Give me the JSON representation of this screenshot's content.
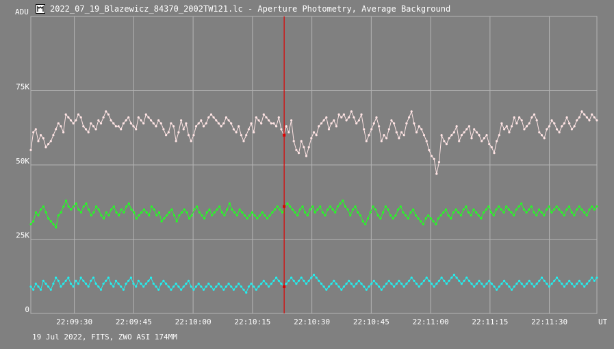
{
  "window": {
    "title": "2022_07_19_Blazewicz_84370_2002TW121.lc - Aperture Photometry, Average Background",
    "icon": "app-window-icon"
  },
  "footer": {
    "info": "19 Jul 2022, FITS, ZWO ASI 174MM"
  },
  "colors": {
    "background": "#808080",
    "grid": "#b4b4b4",
    "text": "#ffffff",
    "cursor": "#dd0000",
    "series_top": "#ffe4e4",
    "series_mid": "#22ff22",
    "series_low": "#22f0f0"
  },
  "chart_data": {
    "type": "line",
    "ylabel": "ADU",
    "xlabel": "UT",
    "ylim": [
      0,
      100000
    ],
    "yticks": [
      {
        "value": 0,
        "label": "0"
      },
      {
        "value": 25000,
        "label": "25K"
      },
      {
        "value": 50000,
        "label": "50K"
      },
      {
        "value": 75000,
        "label": "75K"
      }
    ],
    "xrange": [
      "22:09:19",
      "22:11:42"
    ],
    "xticks": [
      "22:09:30",
      "22:09:45",
      "22:10:00",
      "22:10:15",
      "22:10:30",
      "22:10:45",
      "22:11:00",
      "22:11:15",
      "22:11:30"
    ],
    "cursor_time": "22:10:23",
    "grid": true,
    "series": [
      {
        "key": "series_top",
        "values": [
          55000,
          61000,
          62000,
          58000,
          60000,
          59000,
          56000,
          57000,
          58000,
          60000,
          62000,
          64000,
          63000,
          61000,
          67000,
          66000,
          65000,
          64000,
          65000,
          67000,
          66000,
          63000,
          62000,
          61000,
          64000,
          63000,
          62000,
          65000,
          64000,
          66000,
          68000,
          67000,
          65000,
          64000,
          63000,
          63000,
          62000,
          64000,
          65000,
          66000,
          64000,
          63000,
          62000,
          66000,
          65000,
          64000,
          67000,
          66000,
          65000,
          64000,
          63000,
          65000,
          64000,
          62000,
          60000,
          61000,
          64000,
          63000,
          58000,
          61000,
          65000,
          62000,
          64000,
          60000,
          58000,
          60000,
          63000,
          64000,
          65000,
          63000,
          64000,
          66000,
          67000,
          66000,
          65000,
          64000,
          63000,
          64000,
          66000,
          65000,
          64000,
          62000,
          61000,
          63000,
          60000,
          58000,
          60000,
          62000,
          64000,
          61000,
          66000,
          65000,
          64000,
          67000,
          66000,
          65000,
          64000,
          64000,
          63000,
          66000,
          62000,
          60000,
          63000,
          61000,
          65000,
          58000,
          55000,
          54000,
          58000,
          56000,
          53000,
          56000,
          59000,
          61000,
          60000,
          63000,
          64000,
          65000,
          66000,
          62000,
          64000,
          65000,
          63000,
          67000,
          66000,
          67000,
          65000,
          66000,
          68000,
          66000,
          64000,
          65000,
          67000,
          62000,
          58000,
          60000,
          62000,
          64000,
          66000,
          63000,
          58000,
          60000,
          59000,
          62000,
          65000,
          64000,
          61000,
          59000,
          61000,
          60000,
          64000,
          66000,
          68000,
          64000,
          61000,
          63000,
          62000,
          60000,
          58000,
          55000,
          53000,
          52000,
          47000,
          51000,
          60000,
          58000,
          57000,
          59000,
          60000,
          61000,
          63000,
          58000,
          60000,
          61000,
          62000,
          63000,
          59000,
          62000,
          61000,
          60000,
          58000,
          59000,
          60000,
          57000,
          56000,
          54000,
          58000,
          60000,
          64000,
          62000,
          63000,
          61000,
          63000,
          66000,
          64000,
          66000,
          65000,
          62000,
          63000,
          64000,
          66000,
          67000,
          65000,
          61000,
          60000,
          59000,
          62000,
          63000,
          65000,
          64000,
          62000,
          61000,
          63000,
          64000,
          66000,
          64000,
          62000,
          63000,
          65000,
          66000,
          68000,
          67000,
          66000,
          65000,
          67000,
          66000,
          65000
        ]
      },
      {
        "key": "series_mid",
        "values": [
          30000,
          31000,
          34000,
          33000,
          35000,
          36000,
          34000,
          32000,
          31000,
          30000,
          29000,
          33000,
          34000,
          36000,
          38000,
          36000,
          35000,
          36000,
          37000,
          35000,
          34000,
          36000,
          37000,
          35000,
          33000,
          34000,
          36000,
          35000,
          33000,
          32000,
          34000,
          33000,
          35000,
          36000,
          34000,
          33000,
          35000,
          34000,
          36000,
          37000,
          35000,
          34000,
          32000,
          33000,
          34000,
          35000,
          34000,
          33000,
          36000,
          35000,
          33000,
          34000,
          31000,
          32000,
          33000,
          34000,
          35000,
          33000,
          31000,
          33000,
          34000,
          35000,
          34000,
          32000,
          33000,
          35000,
          36000,
          34000,
          33000,
          32000,
          34000,
          35000,
          33000,
          34000,
          35000,
          36000,
          34000,
          33000,
          35000,
          37000,
          35000,
          34000,
          33000,
          35000,
          34000,
          33000,
          32000,
          33000,
          34000,
          33000,
          32000,
          33000,
          34000,
          33000,
          32000,
          33000,
          34000,
          35000,
          36000,
          35000,
          34000,
          36000,
          37000,
          36000,
          35000,
          34000,
          33000,
          35000,
          36000,
          34000,
          33000,
          35000,
          36000,
          34000,
          35000,
          36000,
          34000,
          33000,
          35000,
          36000,
          35000,
          34000,
          36000,
          37000,
          38000,
          36000,
          35000,
          33000,
          35000,
          36000,
          34000,
          33000,
          31000,
          30000,
          32000,
          34000,
          36000,
          35000,
          33000,
          32000,
          34000,
          36000,
          35000,
          33000,
          32000,
          33000,
          35000,
          36000,
          34000,
          33000,
          32000,
          34000,
          35000,
          33000,
          32000,
          31000,
          30000,
          32000,
          33000,
          32000,
          31000,
          30000,
          32000,
          33000,
          34000,
          35000,
          33000,
          32000,
          34000,
          35000,
          34000,
          33000,
          35000,
          36000,
          34000,
          33000,
          35000,
          34000,
          33000,
          32000,
          34000,
          35000,
          36000,
          34000,
          33000,
          35000,
          36000,
          35000,
          34000,
          36000,
          35000,
          34000,
          33000,
          35000,
          36000,
          37000,
          35000,
          34000,
          35000,
          36000,
          34000,
          33000,
          35000,
          34000,
          33000,
          35000,
          36000,
          34000,
          35000,
          36000,
          35000,
          34000,
          33000,
          35000,
          36000,
          34000,
          33000,
          35000,
          36000,
          35000,
          34000,
          33000,
          35000,
          36000,
          35000,
          36000
        ]
      },
      {
        "key": "series_low",
        "values": [
          9000,
          8000,
          10000,
          9000,
          8000,
          11000,
          10000,
          9000,
          8000,
          10000,
          12000,
          11000,
          9000,
          10000,
          11000,
          12000,
          10000,
          9000,
          11000,
          10000,
          12000,
          11000,
          10000,
          9000,
          11000,
          12000,
          10000,
          9000,
          8000,
          10000,
          11000,
          12000,
          10000,
          9000,
          11000,
          10000,
          9000,
          8000,
          10000,
          11000,
          12000,
          10000,
          9000,
          11000,
          10000,
          9000,
          10000,
          11000,
          12000,
          10000,
          9000,
          8000,
          10000,
          11000,
          10000,
          9000,
          8000,
          9000,
          10000,
          9000,
          8000,
          9000,
          10000,
          11000,
          9000,
          8000,
          9000,
          10000,
          9000,
          8000,
          9000,
          10000,
          9000,
          8000,
          9000,
          10000,
          9000,
          8000,
          9000,
          10000,
          9000,
          8000,
          9000,
          10000,
          9000,
          8000,
          7000,
          9000,
          10000,
          9000,
          8000,
          9000,
          10000,
          11000,
          10000,
          9000,
          10000,
          11000,
          12000,
          11000,
          10000,
          9000,
          10000,
          11000,
          12000,
          11000,
          10000,
          11000,
          12000,
          11000,
          10000,
          11000,
          12000,
          13000,
          12000,
          11000,
          10000,
          9000,
          8000,
          9000,
          10000,
          11000,
          10000,
          9000,
          8000,
          9000,
          10000,
          11000,
          10000,
          9000,
          10000,
          11000,
          10000,
          9000,
          8000,
          9000,
          10000,
          11000,
          10000,
          9000,
          8000,
          9000,
          10000,
          11000,
          10000,
          9000,
          10000,
          11000,
          10000,
          9000,
          10000,
          11000,
          12000,
          11000,
          10000,
          9000,
          10000,
          11000,
          12000,
          11000,
          10000,
          9000,
          10000,
          11000,
          12000,
          11000,
          10000,
          11000,
          12000,
          13000,
          12000,
          11000,
          10000,
          11000,
          12000,
          11000,
          10000,
          9000,
          10000,
          11000,
          10000,
          9000,
          10000,
          11000,
          10000,
          9000,
          8000,
          9000,
          10000,
          11000,
          10000,
          9000,
          8000,
          9000,
          10000,
          11000,
          10000,
          9000,
          10000,
          11000,
          10000,
          9000,
          10000,
          11000,
          12000,
          11000,
          10000,
          9000,
          10000,
          11000,
          12000,
          11000,
          10000,
          9000,
          10000,
          11000,
          10000,
          9000,
          10000,
          11000,
          10000,
          9000,
          10000,
          11000,
          12000,
          11000,
          12000
        ]
      }
    ]
  }
}
